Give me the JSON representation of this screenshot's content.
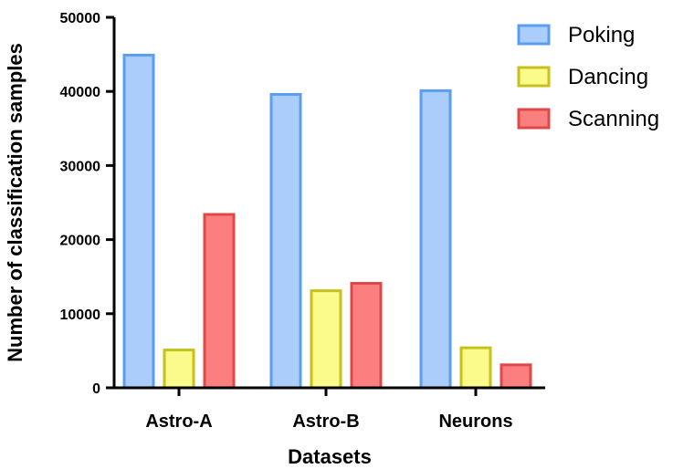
{
  "chart_data": {
    "type": "bar",
    "title": "",
    "xlabel": "Datasets",
    "ylabel": "Number of classification samples",
    "categories": [
      "Astro-A",
      "Astro-B",
      "Neurons"
    ],
    "ylim": [
      0,
      50000
    ],
    "yticks": [
      "0",
      "10000",
      "20000",
      "30000",
      "40000",
      "50000"
    ],
    "legend_position": "top-right",
    "grid": false,
    "series": [
      {
        "name": "Poking",
        "values": [
          44900,
          39600,
          40100
        ],
        "fill": "#abcdfc",
        "stroke": "#5b9ef0"
      },
      {
        "name": "Dancing",
        "values": [
          5100,
          13100,
          5400
        ],
        "fill": "#fbfb8c",
        "stroke": "#c6c21b"
      },
      {
        "name": "Scanning",
        "values": [
          23400,
          14100,
          3100
        ],
        "fill": "#fc7f7f",
        "stroke": "#e14747"
      }
    ]
  }
}
